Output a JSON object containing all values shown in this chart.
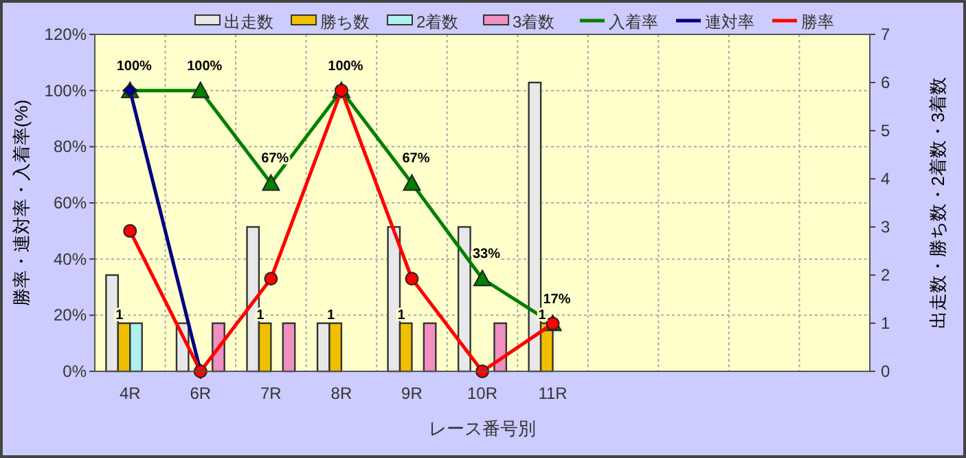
{
  "chart_data": {
    "type": "bar",
    "xlabel": "レース番号別",
    "ylabel": "勝率・連対率・入着率(%)",
    "y2label": "出走数・勝ち数・2着数・3着数",
    "categories": [
      "4R",
      "6R",
      "7R",
      "8R",
      "9R",
      "10R",
      "11R",
      null,
      null,
      null,
      null
    ],
    "series": [
      {
        "name": "出走数",
        "axis": "y2",
        "color": "#e8e8e8",
        "values": [
          2,
          1,
          3,
          1,
          3,
          3,
          6,
          null,
          null,
          null,
          null
        ]
      },
      {
        "name": "勝ち数",
        "axis": "y2",
        "color": "#f0c000",
        "values": [
          1,
          0,
          1,
          1,
          1,
          0,
          1,
          null,
          null,
          null,
          null
        ],
        "value_labels": [
          "1",
          null,
          "1",
          "1",
          "1",
          null,
          "1",
          null,
          null,
          null,
          null
        ]
      },
      {
        "name": "2着数",
        "axis": "y2",
        "color": "#b0f0f0",
        "values": [
          1,
          0,
          0,
          0,
          0,
          0,
          0,
          null,
          null,
          null,
          null
        ]
      },
      {
        "name": "3着数",
        "axis": "y2",
        "color": "#f090c0",
        "values": [
          0,
          1,
          1,
          0,
          1,
          1,
          0,
          null,
          null,
          null,
          null
        ]
      },
      {
        "name": "入着率",
        "type": "line",
        "marker": "triangle",
        "color": "#008000",
        "values": [
          100,
          100,
          67,
          100,
          67,
          33,
          17,
          null,
          null,
          null,
          null
        ],
        "value_labels": [
          "100%",
          "100%",
          "67%",
          "100%",
          "67%",
          "33%",
          "17%",
          null,
          null,
          null,
          null
        ]
      },
      {
        "name": "連対率",
        "type": "line",
        "marker": "diamond",
        "color": "#000080",
        "values": [
          100,
          0,
          null,
          null,
          null,
          null,
          null,
          null,
          null,
          null,
          null
        ]
      },
      {
        "name": "勝率",
        "type": "line",
        "marker": "circle",
        "color": "#ff0000",
        "values": [
          50,
          0,
          33,
          100,
          33,
          0,
          17,
          null,
          null,
          null,
          null
        ]
      }
    ],
    "ylim": [
      0,
      120
    ],
    "yticks": [
      {
        "value": 0,
        "label": "0%"
      },
      {
        "value": 20,
        "label": "20%"
      },
      {
        "value": 40,
        "label": "40%"
      },
      {
        "value": 60,
        "label": "60%"
      },
      {
        "value": 80,
        "label": "80%"
      },
      {
        "value": 100,
        "label": "100%"
      },
      {
        "value": 120,
        "label": "120%"
      }
    ],
    "y2lim": [
      0,
      7
    ],
    "y2ticks": [
      0,
      1,
      2,
      3,
      4,
      5,
      6,
      7
    ],
    "grid": true,
    "legend": "top"
  }
}
